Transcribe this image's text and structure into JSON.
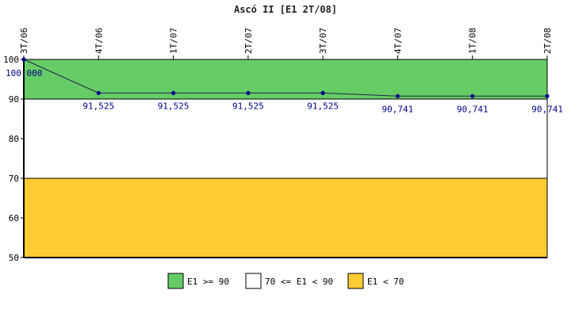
{
  "chart_data": {
    "type": "line",
    "title": "Ascó II [E1 2T/08]",
    "categories": [
      "3T/06",
      "4T/06",
      "1T/07",
      "2T/07",
      "3T/07",
      "4T/07",
      "1T/08",
      "2T/08"
    ],
    "series": [
      {
        "values": [
          100.0,
          91.525,
          91.525,
          91.525,
          91.525,
          90.741,
          90.741,
          90.741
        ],
        "labels": [
          "100,000",
          "91,525",
          "91,525",
          "91,525",
          "91,525",
          "90,741",
          "90,741",
          "90,741"
        ],
        "color": "#1f2a44",
        "point_color": "#00008b"
      }
    ],
    "ylim": [
      50,
      100
    ],
    "yticks": [
      50,
      60,
      70,
      80,
      90,
      100
    ],
    "bands": [
      {
        "from": 90,
        "to": 100,
        "color": "#66cc66",
        "legend": "E1 >= 90"
      },
      {
        "from": 70,
        "to": 90,
        "color": "#ffffff",
        "legend": "70 <= E1 < 90"
      },
      {
        "from": 50,
        "to": 70,
        "color": "#ffcc33",
        "legend": "E1 < 70"
      }
    ],
    "legend_position": "bottom",
    "grid": false
  }
}
